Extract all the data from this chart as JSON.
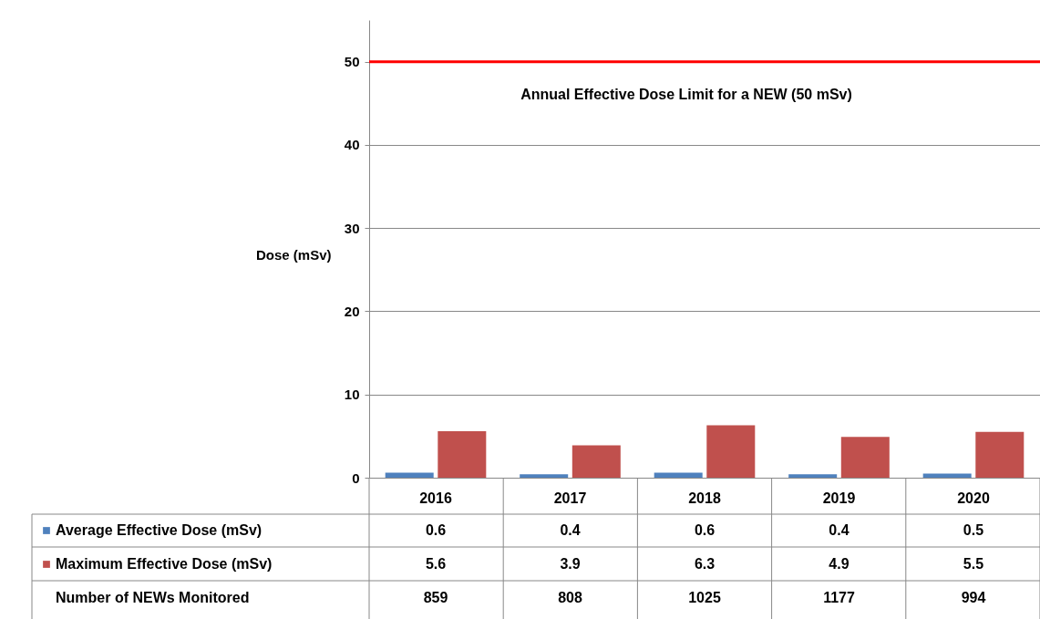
{
  "chart_data": {
    "type": "bar",
    "ylabel": "Dose (mSv)",
    "categories": [
      "2016",
      "2017",
      "2018",
      "2019",
      "2020"
    ],
    "series": [
      {
        "name": "Average Effective Dose (mSv)",
        "color": "#4f81bd",
        "values": [
          0.6,
          0.4,
          0.6,
          0.4,
          0.5
        ]
      },
      {
        "name": "Maximum Effective Dose (mSv)",
        "color": "#c0504d",
        "values": [
          5.6,
          3.9,
          6.3,
          4.9,
          5.5
        ]
      }
    ],
    "ylim": [
      0,
      55
    ],
    "yticks": [
      0,
      10,
      20,
      30,
      40,
      50
    ],
    "grid": "y",
    "legend": "bottom",
    "data_labels": true,
    "ref_lines": [
      {
        "axis": "y",
        "value": 50,
        "label": "Annual Effective Dose Limit for a NEW (50 mSv)",
        "color": "#ff0000"
      }
    ],
    "annotations": [
      "Number of NEWs Monitored",
      "859",
      "808",
      "1025",
      "1177",
      "994"
    ]
  }
}
